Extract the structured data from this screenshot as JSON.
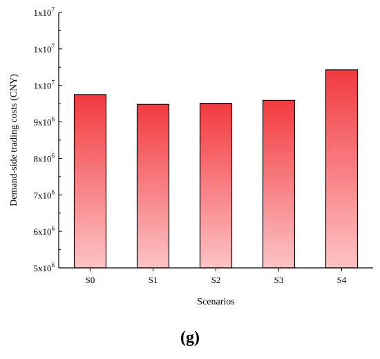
{
  "chart_data": {
    "type": "bar",
    "categories": [
      "S0",
      "S1",
      "S2",
      "S3",
      "S4"
    ],
    "values": [
      9750000,
      9480000,
      9510000,
      9590000,
      10430000
    ],
    "xlabel": "Scenarios",
    "ylabel": "Demand-side trading costs (CNY)",
    "ylim": [
      5000000,
      12000000
    ],
    "yticks": [
      {
        "value": 5000000,
        "mant": "5x10",
        "exp": "6"
      },
      {
        "value": 6000000,
        "mant": "6x10",
        "exp": "6"
      },
      {
        "value": 7000000,
        "mant": "7x10",
        "exp": "6"
      },
      {
        "value": 8000000,
        "mant": "8x10",
        "exp": "6"
      },
      {
        "value": 9000000,
        "mant": "9x10",
        "exp": "6"
      },
      {
        "value": 10000000,
        "mant": "1x10",
        "exp": "7"
      },
      {
        "value": 11000000,
        "mant": "1x10",
        "exp": "7"
      },
      {
        "value": 12000000,
        "mant": "1x10",
        "exp": "7"
      }
    ],
    "grid": false,
    "legend": "none",
    "bar_gradient": {
      "top": "#f23a3f",
      "bottom": "#fdc3c5"
    },
    "bar_stroke": "#000000"
  },
  "panel_label": "(g)"
}
